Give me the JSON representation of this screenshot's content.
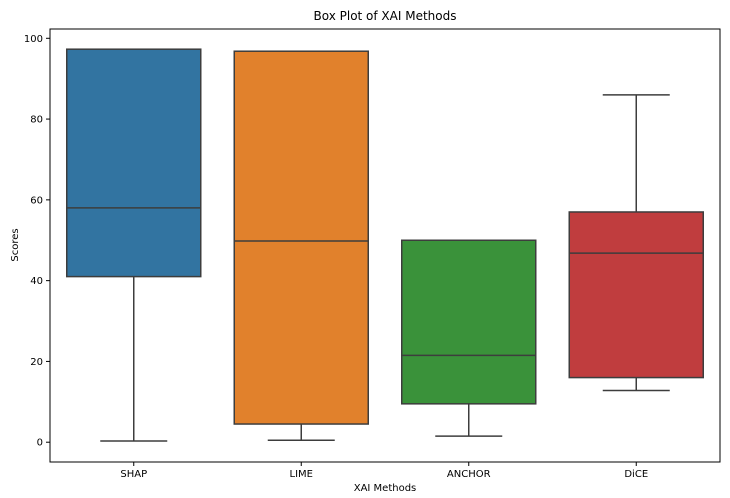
{
  "chart_data": {
    "type": "box",
    "title": "Box Plot of XAI Methods",
    "xlabel": "XAI Methods",
    "ylabel": "Scores",
    "ylim": [
      -4.9,
      102.3
    ],
    "yticks": [
      0,
      20,
      40,
      60,
      80,
      100
    ],
    "grid": false,
    "categories": [
      "SHAP",
      "LIME",
      "ANCHOR",
      "DiCE"
    ],
    "boxes": [
      {
        "name": "SHAP",
        "min": 0.3,
        "q1": 41.0,
        "median": 58.0,
        "q3": 97.3,
        "max": 97.3,
        "color": "#3274a1"
      },
      {
        "name": "LIME",
        "min": 0.5,
        "q1": 4.5,
        "median": 49.8,
        "q3": 96.8,
        "max": 96.8,
        "color": "#e1812c"
      },
      {
        "name": "ANCHOR",
        "min": 1.5,
        "q1": 9.5,
        "median": 21.5,
        "q3": 50.0,
        "max": 50.0,
        "color": "#3a923a"
      },
      {
        "name": "DiCE",
        "min": 12.8,
        "q1": 16.0,
        "median": 46.8,
        "q3": 57.0,
        "max": 86.0,
        "color": "#c03d3e"
      }
    ]
  }
}
